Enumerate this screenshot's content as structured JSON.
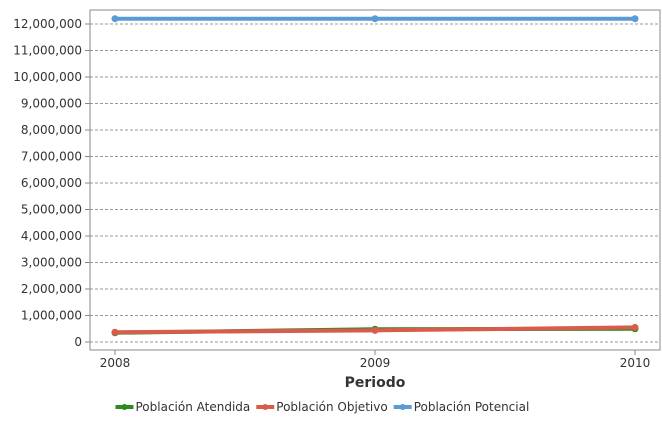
{
  "chart_data": {
    "type": "line",
    "title": "",
    "xlabel": "Periodo",
    "ylabel": "",
    "x": [
      "2008",
      "2009",
      "2010"
    ],
    "ylim": [
      0,
      12500000
    ],
    "y_ticks": [
      0,
      1000000,
      2000000,
      3000000,
      4000000,
      5000000,
      6000000,
      7000000,
      8000000,
      9000000,
      10000000,
      11000000,
      12000000
    ],
    "y_tick_labels": [
      "0",
      "1,000,000",
      "2,000,000",
      "3,000,000",
      "4,000,000",
      "5,000,000",
      "6,000,000",
      "7,000,000",
      "8,000,000",
      "9,000,000",
      "10,000,000",
      "11,000,000",
      "12,000,000"
    ],
    "grid": true,
    "legend_position": "bottom",
    "series": [
      {
        "name": "Población Atendida",
        "color": "#2e8b1e",
        "values": [
          350000,
          480000,
          500000
        ]
      },
      {
        "name": "Población Objetivo",
        "color": "#d95b4b",
        "values": [
          370000,
          440000,
          550000
        ]
      },
      {
        "name": "Población Potencial",
        "color": "#5b9bd5",
        "values": [
          12200000,
          12200000,
          12200000
        ]
      }
    ]
  }
}
